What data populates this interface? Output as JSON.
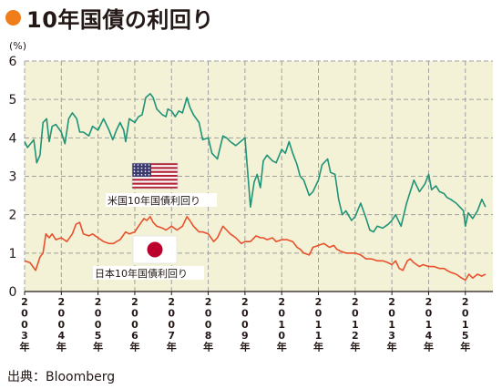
{
  "title": "10年国債の利回り",
  "unit_label": "(%)",
  "source": "出典：Bloomberg",
  "colors": {
    "title_dot": "#ef7d1a",
    "plot_bg": "#f4f2d6",
    "grid": "#9fa0a0",
    "us_line": "#1e9377",
    "jp_line": "#e8502c"
  },
  "chart_data": {
    "type": "line",
    "title": "10年国債の利回り",
    "ylabel": "(%)",
    "ylim": [
      0,
      6
    ],
    "yticks": [
      0,
      1,
      2,
      3,
      4,
      5,
      6
    ],
    "xlim": [
      2003.0,
      2015.75
    ],
    "xticks": [
      {
        "x": 2003.0,
        "label": "2003年"
      },
      {
        "x": 2004.0,
        "label": "2004年"
      },
      {
        "x": 2005.0,
        "label": "2005年"
      },
      {
        "x": 2006.0,
        "label": "2006年"
      },
      {
        "x": 2007.0,
        "label": "2007年"
      },
      {
        "x": 2008.0,
        "label": "2008年"
      },
      {
        "x": 2009.0,
        "label": "2009年"
      },
      {
        "x": 2010.0,
        "label": "2010年"
      },
      {
        "x": 2011.0,
        "label": "2011年"
      },
      {
        "x": 2012.0,
        "label": "2012年"
      },
      {
        "x": 2013.0,
        "label": "2013年"
      },
      {
        "x": 2014.0,
        "label": "2014年"
      },
      {
        "x": 2015.0,
        "label": "2015年"
      }
    ],
    "grid": true,
    "series": [
      {
        "name": "米国10年国債利回り",
        "points": [
          [
            2003.0,
            3.9
          ],
          [
            2003.08,
            3.75
          ],
          [
            2003.25,
            3.95
          ],
          [
            2003.33,
            3.35
          ],
          [
            2003.42,
            3.55
          ],
          [
            2003.5,
            4.4
          ],
          [
            2003.6,
            4.5
          ],
          [
            2003.67,
            3.9
          ],
          [
            2003.75,
            4.3
          ],
          [
            2003.85,
            4.35
          ],
          [
            2004.0,
            4.15
          ],
          [
            2004.1,
            3.85
          ],
          [
            2004.2,
            4.5
          ],
          [
            2004.3,
            4.65
          ],
          [
            2004.42,
            4.5
          ],
          [
            2004.5,
            4.15
          ],
          [
            2004.6,
            4.15
          ],
          [
            2004.75,
            4.05
          ],
          [
            2004.85,
            4.3
          ],
          [
            2005.0,
            4.2
          ],
          [
            2005.15,
            4.5
          ],
          [
            2005.3,
            4.2
          ],
          [
            2005.4,
            3.95
          ],
          [
            2005.5,
            4.2
          ],
          [
            2005.6,
            4.4
          ],
          [
            2005.7,
            4.2
          ],
          [
            2005.75,
            3.9
          ],
          [
            2005.85,
            4.5
          ],
          [
            2006.0,
            4.4
          ],
          [
            2006.1,
            4.55
          ],
          [
            2006.2,
            4.6
          ],
          [
            2006.3,
            5.05
          ],
          [
            2006.42,
            5.15
          ],
          [
            2006.5,
            5.05
          ],
          [
            2006.6,
            4.75
          ],
          [
            2006.75,
            4.6
          ],
          [
            2006.85,
            4.55
          ],
          [
            2006.9,
            4.75
          ],
          [
            2007.0,
            4.7
          ],
          [
            2007.1,
            4.55
          ],
          [
            2007.2,
            4.7
          ],
          [
            2007.3,
            4.65
          ],
          [
            2007.42,
            5.05
          ],
          [
            2007.5,
            4.8
          ],
          [
            2007.6,
            4.6
          ],
          [
            2007.75,
            4.4
          ],
          [
            2007.85,
            3.95
          ],
          [
            2008.0,
            4.0
          ],
          [
            2008.1,
            3.6
          ],
          [
            2008.25,
            3.45
          ],
          [
            2008.4,
            4.05
          ],
          [
            2008.5,
            4.0
          ],
          [
            2008.6,
            3.9
          ],
          [
            2008.75,
            3.8
          ],
          [
            2009.0,
            4.0
          ],
          [
            2009.15,
            2.2
          ],
          [
            2009.25,
            2.85
          ],
          [
            2009.33,
            3.05
          ],
          [
            2009.42,
            2.7
          ],
          [
            2009.5,
            3.4
          ],
          [
            2009.6,
            3.55
          ],
          [
            2009.75,
            3.4
          ],
          [
            2009.85,
            3.35
          ],
          [
            2010.0,
            3.7
          ],
          [
            2010.1,
            3.6
          ],
          [
            2010.2,
            3.9
          ],
          [
            2010.3,
            3.6
          ],
          [
            2010.42,
            3.3
          ],
          [
            2010.5,
            3.0
          ],
          [
            2010.6,
            2.9
          ],
          [
            2010.75,
            2.5
          ],
          [
            2010.85,
            2.6
          ],
          [
            2011.0,
            2.9
          ],
          [
            2011.1,
            3.3
          ],
          [
            2011.25,
            3.45
          ],
          [
            2011.33,
            3.1
          ],
          [
            2011.45,
            3.05
          ],
          [
            2011.55,
            2.4
          ],
          [
            2011.65,
            2.0
          ],
          [
            2011.75,
            2.1
          ],
          [
            2011.9,
            1.85
          ],
          [
            2012.0,
            1.95
          ],
          [
            2012.15,
            2.3
          ],
          [
            2012.3,
            1.9
          ],
          [
            2012.4,
            1.6
          ],
          [
            2012.5,
            1.55
          ],
          [
            2012.6,
            1.7
          ],
          [
            2012.75,
            1.65
          ],
          [
            2012.9,
            1.75
          ],
          [
            2013.0,
            1.85
          ],
          [
            2013.1,
            2.0
          ],
          [
            2013.25,
            1.7
          ],
          [
            2013.4,
            2.3
          ],
          [
            2013.5,
            2.6
          ],
          [
            2013.6,
            2.9
          ],
          [
            2013.75,
            2.6
          ],
          [
            2013.9,
            2.8
          ],
          [
            2014.0,
            3.05
          ],
          [
            2014.08,
            2.65
          ],
          [
            2014.2,
            2.75
          ],
          [
            2014.3,
            2.6
          ],
          [
            2014.42,
            2.55
          ],
          [
            2014.5,
            2.45
          ],
          [
            2014.6,
            2.4
          ],
          [
            2014.75,
            2.3
          ],
          [
            2014.85,
            2.2
          ],
          [
            2014.95,
            2.1
          ],
          [
            2015.0,
            1.7
          ],
          [
            2015.08,
            2.05
          ],
          [
            2015.2,
            1.9
          ],
          [
            2015.33,
            2.1
          ],
          [
            2015.45,
            2.4
          ],
          [
            2015.55,
            2.2
          ]
        ]
      },
      {
        "name": "日本10年国債利回り",
        "points": [
          [
            2003.0,
            0.8
          ],
          [
            2003.15,
            0.75
          ],
          [
            2003.3,
            0.55
          ],
          [
            2003.42,
            0.9
          ],
          [
            2003.5,
            1.0
          ],
          [
            2003.58,
            1.5
          ],
          [
            2003.67,
            1.4
          ],
          [
            2003.75,
            1.5
          ],
          [
            2003.85,
            1.35
          ],
          [
            2004.0,
            1.4
          ],
          [
            2004.15,
            1.3
          ],
          [
            2004.3,
            1.5
          ],
          [
            2004.4,
            1.75
          ],
          [
            2004.5,
            1.8
          ],
          [
            2004.6,
            1.5
          ],
          [
            2004.75,
            1.45
          ],
          [
            2004.85,
            1.5
          ],
          [
            2005.0,
            1.4
          ],
          [
            2005.15,
            1.3
          ],
          [
            2005.3,
            1.25
          ],
          [
            2005.42,
            1.25
          ],
          [
            2005.5,
            1.3
          ],
          [
            2005.6,
            1.35
          ],
          [
            2005.75,
            1.55
          ],
          [
            2005.85,
            1.5
          ],
          [
            2006.0,
            1.55
          ],
          [
            2006.1,
            1.7
          ],
          [
            2006.25,
            1.9
          ],
          [
            2006.33,
            1.85
          ],
          [
            2006.42,
            1.95
          ],
          [
            2006.5,
            1.8
          ],
          [
            2006.6,
            1.7
          ],
          [
            2006.75,
            1.65
          ],
          [
            2006.85,
            1.6
          ],
          [
            2007.0,
            1.7
          ],
          [
            2007.15,
            1.6
          ],
          [
            2007.3,
            1.7
          ],
          [
            2007.42,
            1.95
          ],
          [
            2007.5,
            1.85
          ],
          [
            2007.6,
            1.7
          ],
          [
            2007.75,
            1.55
          ],
          [
            2007.85,
            1.55
          ],
          [
            2008.0,
            1.5
          ],
          [
            2008.15,
            1.3
          ],
          [
            2008.25,
            1.4
          ],
          [
            2008.4,
            1.7
          ],
          [
            2008.5,
            1.6
          ],
          [
            2008.6,
            1.5
          ],
          [
            2008.75,
            1.4
          ],
          [
            2008.9,
            1.25
          ],
          [
            2009.0,
            1.3
          ],
          [
            2009.15,
            1.3
          ],
          [
            2009.3,
            1.45
          ],
          [
            2009.42,
            1.4
          ],
          [
            2009.5,
            1.4
          ],
          [
            2009.6,
            1.35
          ],
          [
            2009.75,
            1.4
          ],
          [
            2009.85,
            1.3
          ],
          [
            2010.0,
            1.35
          ],
          [
            2010.15,
            1.35
          ],
          [
            2010.3,
            1.3
          ],
          [
            2010.42,
            1.15
          ],
          [
            2010.5,
            1.1
          ],
          [
            2010.6,
            1.0
          ],
          [
            2010.75,
            0.95
          ],
          [
            2010.85,
            1.15
          ],
          [
            2011.0,
            1.2
          ],
          [
            2011.15,
            1.25
          ],
          [
            2011.3,
            1.15
          ],
          [
            2011.42,
            1.2
          ],
          [
            2011.5,
            1.1
          ],
          [
            2011.6,
            1.05
          ],
          [
            2011.75,
            1.0
          ],
          [
            2011.9,
            1.0
          ],
          [
            2012.0,
            1.0
          ],
          [
            2012.15,
            0.95
          ],
          [
            2012.3,
            0.85
          ],
          [
            2012.45,
            0.85
          ],
          [
            2012.6,
            0.8
          ],
          [
            2012.75,
            0.8
          ],
          [
            2012.9,
            0.75
          ],
          [
            2013.0,
            0.7
          ],
          [
            2013.1,
            0.8
          ],
          [
            2013.2,
            0.6
          ],
          [
            2013.3,
            0.55
          ],
          [
            2013.42,
            0.8
          ],
          [
            2013.5,
            0.85
          ],
          [
            2013.6,
            0.75
          ],
          [
            2013.75,
            0.65
          ],
          [
            2013.85,
            0.7
          ],
          [
            2014.0,
            0.65
          ],
          [
            2014.15,
            0.65
          ],
          [
            2014.3,
            0.6
          ],
          [
            2014.42,
            0.6
          ],
          [
            2014.5,
            0.55
          ],
          [
            2014.6,
            0.5
          ],
          [
            2014.75,
            0.45
          ],
          [
            2014.9,
            0.35
          ],
          [
            2015.0,
            0.3
          ],
          [
            2015.1,
            0.45
          ],
          [
            2015.2,
            0.35
          ],
          [
            2015.33,
            0.45
          ],
          [
            2015.45,
            0.4
          ],
          [
            2015.55,
            0.45
          ]
        ]
      }
    ]
  }
}
